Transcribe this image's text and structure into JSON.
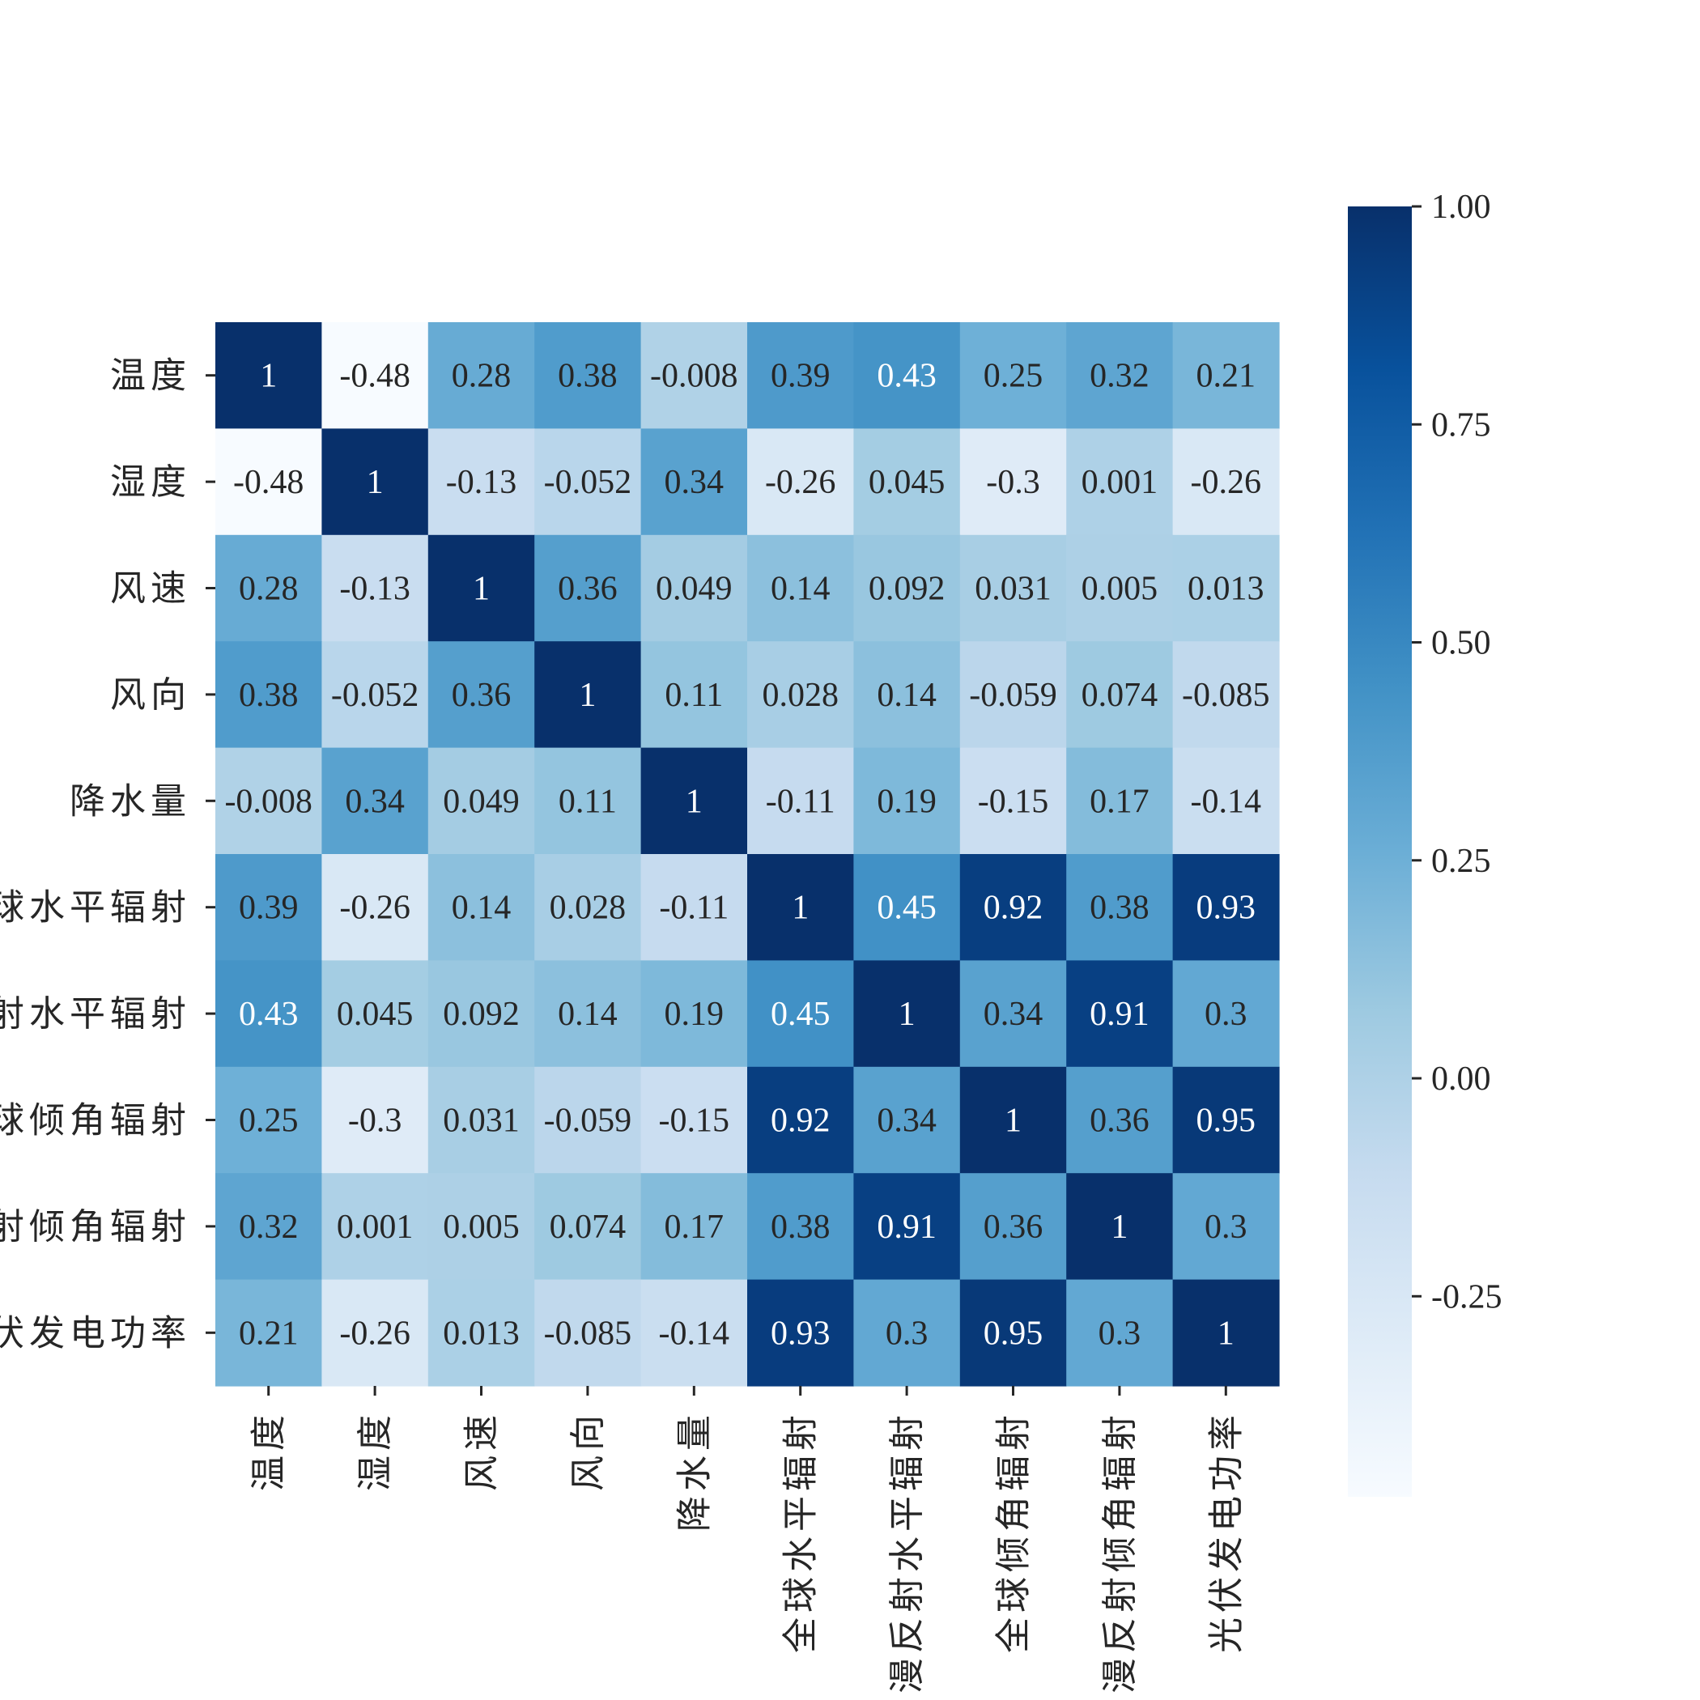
{
  "chart_data": {
    "type": "heatmap",
    "title": "",
    "xlabel": "",
    "ylabel": "",
    "row_labels": [
      "温度",
      "湿度",
      "风速",
      "风向",
      "降水量",
      "全球水平辐射",
      "漫反射水平辐射",
      "全球倾角辐射",
      "漫反射倾角辐射",
      "光伏发电功率"
    ],
    "col_labels": [
      "温度",
      "湿度",
      "风速",
      "风向",
      "降水量",
      "全球水平辐射",
      "漫反射水平辐射",
      "全球倾角辐射",
      "漫反射倾角辐射",
      "光伏发电功率"
    ],
    "values": [
      [
        1,
        -0.48,
        0.28,
        0.38,
        -0.008,
        0.39,
        0.43,
        0.25,
        0.32,
        0.21
      ],
      [
        -0.48,
        1,
        -0.13,
        -0.052,
        0.34,
        -0.26,
        0.045,
        -0.3,
        0.001,
        -0.26
      ],
      [
        0.28,
        -0.13,
        1,
        0.36,
        0.049,
        0.14,
        0.092,
        0.031,
        0.005,
        0.013
      ],
      [
        0.38,
        -0.052,
        0.36,
        1,
        0.11,
        0.028,
        0.14,
        -0.059,
        0.074,
        -0.085
      ],
      [
        -0.008,
        0.34,
        0.049,
        0.11,
        1,
        -0.11,
        0.19,
        -0.15,
        0.17,
        -0.14
      ],
      [
        0.39,
        -0.26,
        0.14,
        0.028,
        -0.11,
        1,
        0.45,
        0.92,
        0.38,
        0.93
      ],
      [
        0.43,
        0.045,
        0.092,
        0.14,
        0.19,
        0.45,
        1,
        0.34,
        0.91,
        0.3
      ],
      [
        0.25,
        -0.3,
        0.031,
        -0.059,
        -0.15,
        0.92,
        0.34,
        1,
        0.36,
        0.95
      ],
      [
        0.32,
        0.001,
        0.005,
        0.074,
        0.17,
        0.38,
        0.91,
        0.36,
        1,
        0.3
      ],
      [
        0.21,
        -0.26,
        0.013,
        -0.085,
        -0.14,
        0.93,
        0.3,
        0.95,
        0.3,
        1
      ]
    ],
    "colormap": "Blues",
    "vmin": -0.48,
    "vmax": 1.0,
    "colorbar_ticks": [
      "1.00",
      "0.75",
      "0.50",
      "0.25",
      "0.00",
      "-0.25"
    ],
    "colorbar_tick_values": [
      1.0,
      0.75,
      0.5,
      0.25,
      0.0,
      -0.25
    ],
    "annotate": true,
    "grid": false,
    "legend": "colorbar-right"
  }
}
